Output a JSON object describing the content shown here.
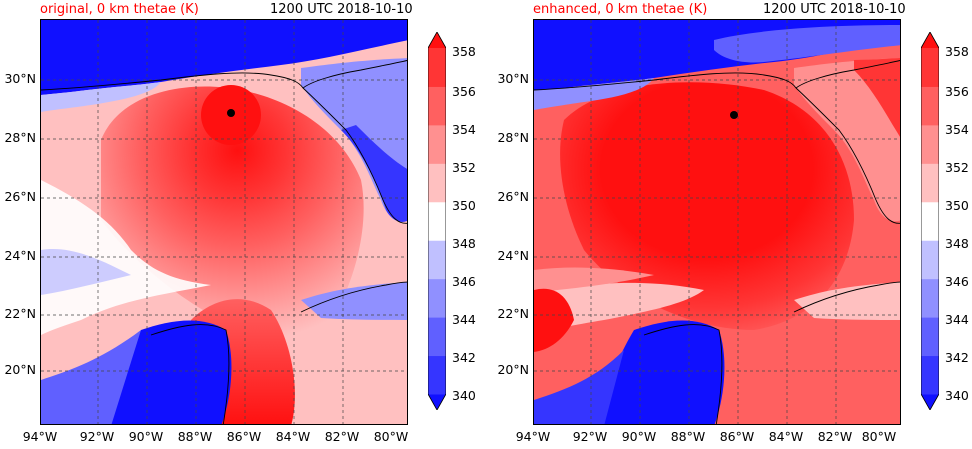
{
  "figure": {
    "colorbar": {
      "ticks": [
        "340",
        "342",
        "344",
        "346",
        "348",
        "350",
        "352",
        "354",
        "356",
        "358"
      ],
      "colors": [
        "#1010ff",
        "#3535ff",
        "#6060ff",
        "#9090ff",
        "#c0c0ff",
        "#ffffff",
        "#ffc0c0",
        "#ff9090",
        "#ff6060",
        "#ff3535",
        "#ff1010"
      ],
      "extend": "both"
    },
    "lat_labels": [
      "30°N",
      "28°N",
      "26°N",
      "24°N",
      "22°N",
      "20°N"
    ],
    "lon_labels": [
      "94°W",
      "92°W",
      "90°W",
      "88°W",
      "86°W",
      "84°W",
      "82°W",
      "80°W"
    ]
  },
  "panels": [
    {
      "title_left": "original, 0 km thetae (K)",
      "title_right": "1200 UTC 2018-10-10",
      "storm_center": {
        "lat": "28.9",
        "lon": "-86.9"
      }
    },
    {
      "title_left": "enhanced, 0 km thetae (K)",
      "title_right": "1200 UTC 2018-10-10",
      "storm_center": {
        "lat": "28.9",
        "lon": "-86.4"
      }
    }
  ],
  "colors": {
    "title_accent": "#ff0000",
    "land_blue": "#1010ff",
    "warm_core": "#ff1010"
  }
}
